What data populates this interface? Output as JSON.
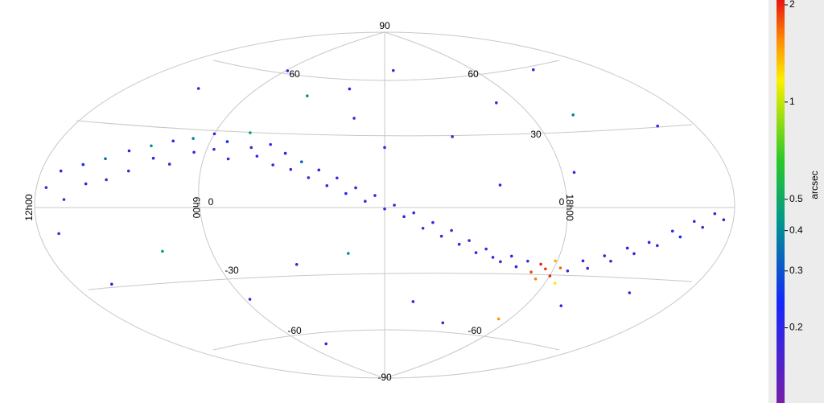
{
  "chart_data": {
    "type": "scatter",
    "projection": "aitoff",
    "xlim": [
      -180,
      180
    ],
    "ylim": [
      -90,
      90
    ],
    "graticule_labels": [
      "90",
      "60",
      "60",
      "30",
      "0",
      "0",
      "-30",
      "-60",
      "-60",
      "-90",
      "12h00",
      "6h00",
      "18h00"
    ],
    "colorbar": {
      "label": "arcsec",
      "log": true,
      "lim": [
        0.117,
        2.07
      ],
      "ticks": [
        0.2,
        0.3,
        0.4,
        0.5,
        1,
        2
      ]
    },
    "x": [
      -175,
      -170,
      -165,
      -160,
      -155,
      -150,
      -145,
      -140,
      -135,
      -130,
      -125,
      -120,
      -115,
      -110,
      -105,
      -100,
      -95,
      -90,
      -85,
      -80,
      -75,
      -70,
      -65,
      -60,
      -55,
      -50,
      -45,
      -40,
      -35,
      -30,
      -25,
      -20,
      -15,
      -10,
      -5,
      0,
      5,
      10,
      15,
      20,
      25,
      30,
      35,
      40,
      45,
      50,
      55,
      60,
      65,
      70,
      75,
      80,
      85,
      88,
      90,
      92,
      95,
      97,
      100,
      103,
      105,
      110,
      115,
      120,
      125,
      130,
      135,
      140,
      145,
      150,
      155,
      160,
      165,
      170,
      175,
      -140,
      -100,
      -60,
      -20,
      10,
      40,
      80,
      120,
      160,
      -160,
      -120,
      -90,
      -50,
      -20,
      20,
      50,
      90,
      120,
      150,
      -70,
      60,
      100,
      -30,
      0,
      140,
      -170
    ],
    "y": [
      6,
      12,
      2,
      15,
      8,
      18,
      10,
      22,
      14,
      25,
      20,
      28,
      18,
      30,
      24,
      33,
      26,
      30,
      22,
      35,
      28,
      24,
      30,
      20,
      26,
      18,
      22,
      14,
      18,
      10,
      14,
      6,
      9,
      2,
      5,
      -2,
      0,
      -6,
      -4,
      -12,
      -9,
      -16,
      -13,
      -20,
      -18,
      -24,
      -22,
      -26,
      -28,
      -25,
      -30,
      -27,
      -32,
      -28,
      -35,
      -30,
      -26,
      -33,
      -29,
      -36,
      -30,
      -25,
      -28,
      -22,
      -24,
      -18,
      -20,
      -15,
      -16,
      -10,
      -12,
      -6,
      -8,
      -3,
      -5,
      50,
      65,
      55,
      45,
      70,
      35,
      50,
      40,
      30,
      -30,
      -20,
      -45,
      -30,
      -25,
      -50,
      -60,
      -55,
      -45,
      -35,
      -70,
      10,
      15,
      60,
      30,
      60,
      -10
    ],
    "values": [
      0.18,
      0.2,
      0.16,
      0.22,
      0.19,
      0.35,
      0.17,
      0.2,
      0.15,
      0.42,
      0.18,
      0.21,
      0.16,
      0.38,
      0.19,
      0.2,
      0.17,
      0.23,
      0.18,
      0.45,
      0.16,
      0.2,
      0.19,
      0.17,
      0.21,
      0.18,
      0.32,
      0.16,
      0.2,
      0.19,
      0.17,
      0.22,
      0.18,
      0.16,
      0.2,
      0.18,
      0.17,
      0.21,
      0.19,
      0.16,
      0.18,
      0.2,
      0.17,
      0.22,
      0.16,
      0.19,
      0.18,
      0.2,
      0.17,
      0.21,
      0.19,
      0.16,
      1.8,
      2.0,
      1.6,
      1.9,
      1.4,
      2.0,
      1.7,
      1.2,
      0.18,
      0.2,
      0.17,
      0.19,
      0.16,
      0.21,
      0.18,
      0.2,
      0.17,
      0.19,
      0.22,
      0.18,
      0.16,
      0.2,
      0.19,
      0.18,
      0.2,
      0.42,
      0.17,
      0.19,
      0.16,
      0.2,
      0.38,
      0.18,
      0.21,
      0.45,
      0.17,
      0.19,
      0.4,
      0.18,
      0.16,
      1.5,
      0.2,
      0.17,
      0.19,
      0.21,
      0.18,
      0.2,
      0.17,
      0.19,
      0.16
    ]
  }
}
